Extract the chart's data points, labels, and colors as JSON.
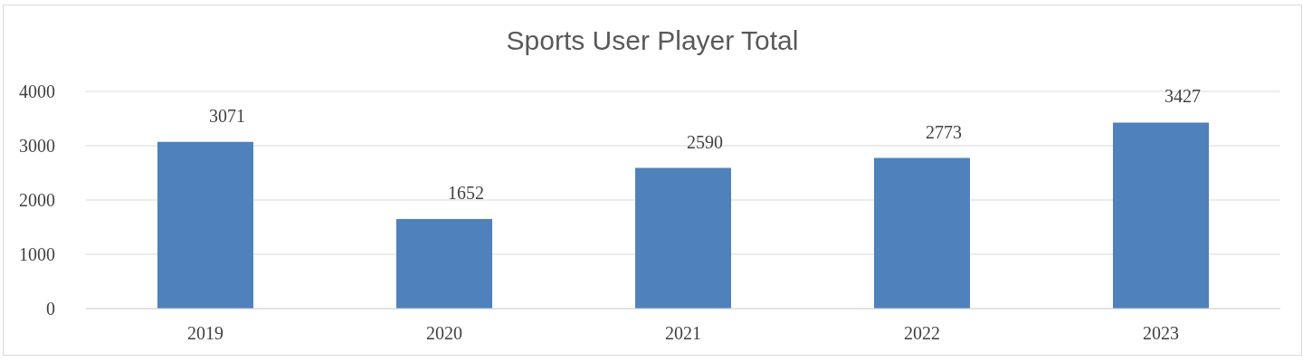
{
  "chart_data": {
    "type": "bar",
    "title": "Sports User Player Total",
    "categories": [
      "2019",
      "2020",
      "2021",
      "2022",
      "2023"
    ],
    "values": [
      3071,
      1652,
      2590,
      2773,
      3427
    ],
    "color": "#4f81bd",
    "ylim": [
      0,
      4000
    ],
    "yticks": [
      0,
      1000,
      2000,
      3000,
      4000
    ],
    "grid": "y",
    "data_labels": true
  }
}
